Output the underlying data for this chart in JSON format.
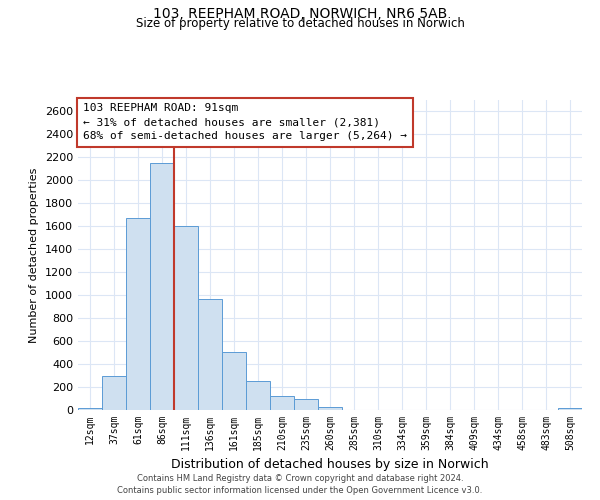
{
  "title": "103, REEPHAM ROAD, NORWICH, NR6 5AB",
  "subtitle": "Size of property relative to detached houses in Norwich",
  "xlabel": "Distribution of detached houses by size in Norwich",
  "ylabel": "Number of detached properties",
  "bar_labels": [
    "12sqm",
    "37sqm",
    "61sqm",
    "86sqm",
    "111sqm",
    "136sqm",
    "161sqm",
    "185sqm",
    "210sqm",
    "235sqm",
    "260sqm",
    "285sqm",
    "310sqm",
    "334sqm",
    "359sqm",
    "384sqm",
    "409sqm",
    "434sqm",
    "458sqm",
    "483sqm",
    "508sqm"
  ],
  "bar_values": [
    20,
    295,
    1670,
    2150,
    1600,
    965,
    505,
    255,
    120,
    95,
    30,
    0,
    0,
    0,
    0,
    0,
    0,
    0,
    0,
    0,
    15
  ],
  "bar_color": "#cfe0f0",
  "bar_edge_color": "#5b9bd5",
  "ylim": [
    0,
    2700
  ],
  "yticks": [
    0,
    200,
    400,
    600,
    800,
    1000,
    1200,
    1400,
    1600,
    1800,
    2000,
    2200,
    2400,
    2600
  ],
  "vline_color": "#c0392b",
  "annotation_title": "103 REEPHAM ROAD: 91sqm",
  "annotation_line1": "← 31% of detached houses are smaller (2,381)",
  "annotation_line2": "68% of semi-detached houses are larger (5,264) →",
  "annotation_box_color": "#ffffff",
  "annotation_box_edge": "#c0392b",
  "footer_line1": "Contains HM Land Registry data © Crown copyright and database right 2024.",
  "footer_line2": "Contains public sector information licensed under the Open Government Licence v3.0.",
  "background_color": "#ffffff",
  "grid_color": "#dce6f5"
}
